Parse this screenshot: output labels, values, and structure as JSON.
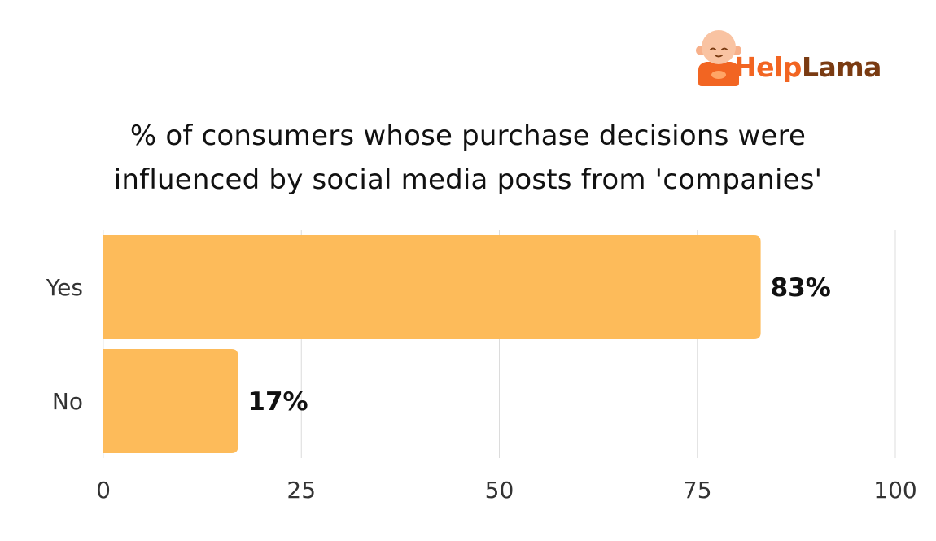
{
  "brand": {
    "name_part1": "Help",
    "name_part2": "Lama",
    "icon": "monk-mascot-icon",
    "colors": {
      "part1": "#f26522",
      "part2": "#7a3b12"
    }
  },
  "chart_data": {
    "type": "bar",
    "orientation": "horizontal",
    "title_lines": [
      "% of consumers whose purchase decisions were",
      "influenced by social media posts from 'companies'"
    ],
    "categories": [
      "Yes",
      "No"
    ],
    "values": [
      83,
      17
    ],
    "value_labels": [
      "83%",
      "17%"
    ],
    "xlim": [
      0,
      100
    ],
    "xticks": [
      0,
      25,
      50,
      75,
      100
    ],
    "xtick_labels": [
      "0",
      "25",
      "50",
      "75",
      "100"
    ],
    "grid": true,
    "legend": "none",
    "bar_color": "#fdbb5a"
  }
}
